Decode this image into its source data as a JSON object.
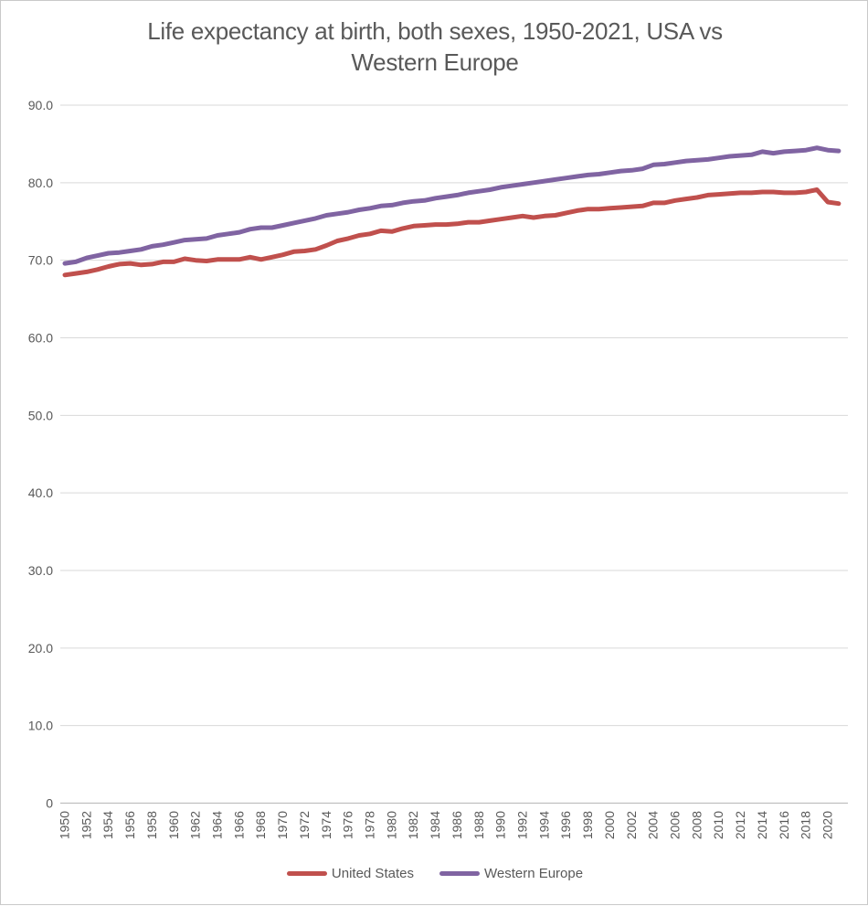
{
  "page": {
    "background": "#ffffff",
    "border_color": "#c9c9c9",
    "text_color": "#595959",
    "gridline_color": "#d9d9d9",
    "axis_line_color": "#bfbfbf"
  },
  "chart_data": {
    "type": "line",
    "title": "Life expectancy at birth, both sexes, 1950-2021, USA vs Western Europe",
    "title_lines": [
      "Life expectancy at birth, both sexes, 1950-2021, USA vs",
      "Western Europe"
    ],
    "xlabel": "",
    "ylabel": "",
    "ylim": [
      0,
      90
    ],
    "grid": "horizontal",
    "legend_position": "bottom",
    "x": [
      1950,
      1951,
      1952,
      1953,
      1954,
      1955,
      1956,
      1957,
      1958,
      1959,
      1960,
      1961,
      1962,
      1963,
      1964,
      1965,
      1966,
      1967,
      1968,
      1969,
      1970,
      1971,
      1972,
      1973,
      1974,
      1975,
      1976,
      1977,
      1978,
      1979,
      1980,
      1981,
      1982,
      1983,
      1984,
      1985,
      1986,
      1987,
      1988,
      1989,
      1990,
      1991,
      1992,
      1993,
      1994,
      1995,
      1996,
      1997,
      1998,
      1999,
      2000,
      2001,
      2002,
      2003,
      2004,
      2005,
      2006,
      2007,
      2008,
      2009,
      2010,
      2011,
      2012,
      2013,
      2014,
      2015,
      2016,
      2017,
      2018,
      2019,
      2020,
      2021
    ],
    "series": [
      {
        "name": "United States",
        "color": "#C0504D",
        "values": [
          68.1,
          68.3,
          68.5,
          68.8,
          69.2,
          69.5,
          69.6,
          69.4,
          69.5,
          69.8,
          69.8,
          70.2,
          70.0,
          69.9,
          70.1,
          70.1,
          70.1,
          70.4,
          70.1,
          70.4,
          70.7,
          71.1,
          71.2,
          71.4,
          71.9,
          72.5,
          72.8,
          73.2,
          73.4,
          73.8,
          73.7,
          74.1,
          74.4,
          74.5,
          74.6,
          74.6,
          74.7,
          74.9,
          74.9,
          75.1,
          75.3,
          75.5,
          75.7,
          75.5,
          75.7,
          75.8,
          76.1,
          76.4,
          76.6,
          76.6,
          76.7,
          76.8,
          76.9,
          77.0,
          77.4,
          77.4,
          77.7,
          77.9,
          78.1,
          78.4,
          78.5,
          78.6,
          78.7,
          78.7,
          78.8,
          78.8,
          78.7,
          78.7,
          78.8,
          79.1,
          77.5,
          77.3
        ]
      },
      {
        "name": "Western Europe",
        "color": "#8064A2",
        "values": [
          69.6,
          69.8,
          70.3,
          70.6,
          70.9,
          71.0,
          71.2,
          71.4,
          71.8,
          72.0,
          72.3,
          72.6,
          72.7,
          72.8,
          73.2,
          73.4,
          73.6,
          74.0,
          74.2,
          74.2,
          74.5,
          74.8,
          75.1,
          75.4,
          75.8,
          76.0,
          76.2,
          76.5,
          76.7,
          77.0,
          77.1,
          77.4,
          77.6,
          77.7,
          78.0,
          78.2,
          78.4,
          78.7,
          78.9,
          79.1,
          79.4,
          79.6,
          79.8,
          80.0,
          80.2,
          80.4,
          80.6,
          80.8,
          81.0,
          81.1,
          81.3,
          81.5,
          81.6,
          81.8,
          82.3,
          82.4,
          82.6,
          82.8,
          82.9,
          83.0,
          83.2,
          83.4,
          83.5,
          83.6,
          84.0,
          83.8,
          84.0,
          84.1,
          84.2,
          84.5,
          84.2,
          84.1
        ]
      }
    ],
    "yticks": [
      {
        "value": 0,
        "label": "0"
      },
      {
        "value": 10,
        "label": "10.0"
      },
      {
        "value": 20,
        "label": "20.0"
      },
      {
        "value": 30,
        "label": "30.0"
      },
      {
        "value": 40,
        "label": "40.0"
      },
      {
        "value": 50,
        "label": "50.0"
      },
      {
        "value": 60,
        "label": "60.0"
      },
      {
        "value": 70,
        "label": "70.0"
      },
      {
        "value": 80,
        "label": "80.0"
      },
      {
        "value": 90,
        "label": "90.0"
      }
    ],
    "xtick_labels": [
      "1950",
      "1952",
      "1954",
      "1956",
      "1958",
      "1960",
      "1962",
      "1964",
      "1966",
      "1968",
      "1970",
      "1972",
      "1974",
      "1976",
      "1978",
      "1980",
      "1982",
      "1984",
      "1986",
      "1988",
      "1990",
      "1992",
      "1994",
      "1996",
      "1998",
      "2000",
      "2002",
      "2004",
      "2006",
      "2008",
      "2010",
      "2012",
      "2014",
      "2016",
      "2018",
      "2020"
    ]
  }
}
